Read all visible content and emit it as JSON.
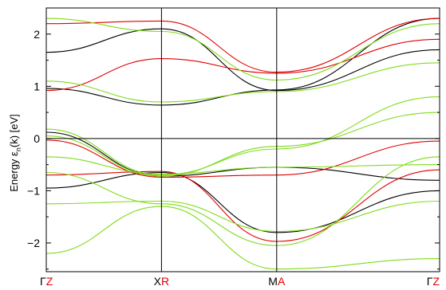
{
  "chart_data": {
    "type": "line",
    "ylabel_main": "Energy  ε",
    "ylabel_sub": "n",
    "ylabel_end": "(k)  [eV]",
    "ylim": [
      -2.55,
      2.5
    ],
    "yticks": [
      "2",
      "1",
      "0",
      "−1",
      "−2"
    ],
    "ytick_values": [
      2,
      1,
      0,
      -1,
      -2
    ],
    "grid": false,
    "kpoints": [
      {
        "black": "Γ",
        "red": "Z",
        "x": 0
      },
      {
        "black": "X",
        "red": "R",
        "x": 1
      },
      {
        "black": "M",
        "red": "A",
        "x": 2
      },
      {
        "black": "Γ",
        "red": "Z",
        "x": 3.4142
      }
    ],
    "fermi_level": 0,
    "series": [
      {
        "color": "#000000",
        "x": [
          0,
          1,
          2,
          3.4142
        ],
        "y": [
          0.96,
          0.64,
          0.93,
          2.3
        ]
      },
      {
        "color": "#000000",
        "x": [
          0,
          1,
          2,
          3.4142
        ],
        "y": [
          0.12,
          -0.72,
          -0.55,
          -0.8
        ]
      },
      {
        "color": "#000000",
        "x": [
          0,
          1,
          2,
          3.4142
        ],
        "y": [
          -0.95,
          -0.65,
          -1.8,
          -1.0
        ]
      },
      {
        "color": "#000000",
        "x": [
          0,
          1,
          2,
          3.4142
        ],
        "y": [
          1.65,
          2.1,
          0.92,
          1.7
        ]
      },
      {
        "color": "#e00000",
        "x": [
          0,
          1,
          2,
          3.4142
        ],
        "y": [
          2.2,
          2.25,
          1.27,
          2.3
        ]
      },
      {
        "color": "#e00000",
        "x": [
          0,
          1,
          2,
          3.4142
        ],
        "y": [
          -0.03,
          -0.74,
          -0.7,
          -0.05
        ]
      },
      {
        "color": "#e00000",
        "x": [
          0,
          1,
          2,
          3.4142
        ],
        "y": [
          -0.7,
          -0.63,
          -1.97,
          -0.6
        ]
      },
      {
        "color": "#e00000",
        "x": [
          0,
          1,
          2,
          3.4142
        ],
        "y": [
          0.92,
          1.53,
          1.25,
          1.9
        ]
      },
      {
        "color": "#7fdc1a",
        "x": [
          0,
          1,
          2,
          3.4142
        ],
        "y": [
          2.3,
          2.05,
          1.12,
          2.2
        ]
      },
      {
        "color": "#7fdc1a",
        "x": [
          0,
          1,
          2,
          3.4142
        ],
        "y": [
          1.1,
          0.7,
          0.9,
          1.45
        ]
      },
      {
        "color": "#7fdc1a",
        "x": [
          0,
          1,
          2,
          3.4142
        ],
        "y": [
          0.18,
          -0.7,
          -0.2,
          0.8
        ]
      },
      {
        "color": "#7fdc1a",
        "x": [
          0,
          1,
          2,
          3.4142
        ],
        "y": [
          -0.35,
          -0.68,
          -0.55,
          -0.5
        ]
      },
      {
        "color": "#7fdc1a",
        "x": [
          0,
          1,
          2,
          3.4142
        ],
        "y": [
          -0.65,
          -1.25,
          -2.05,
          -0.35
        ]
      },
      {
        "color": "#7fdc1a",
        "x": [
          0,
          1,
          2,
          3.4142
        ],
        "y": [
          -1.25,
          -1.2,
          -1.78,
          -1.2
        ]
      },
      {
        "color": "#7fdc1a",
        "x": [
          0,
          1,
          2,
          3.4142
        ],
        "y": [
          -2.2,
          -1.3,
          -2.5,
          -2.3
        ]
      },
      {
        "color": "#7fdc1a",
        "x": [
          0,
          1,
          2,
          3.4142
        ],
        "y": [
          0.05,
          -0.72,
          -0.15,
          0.5
        ]
      }
    ]
  }
}
